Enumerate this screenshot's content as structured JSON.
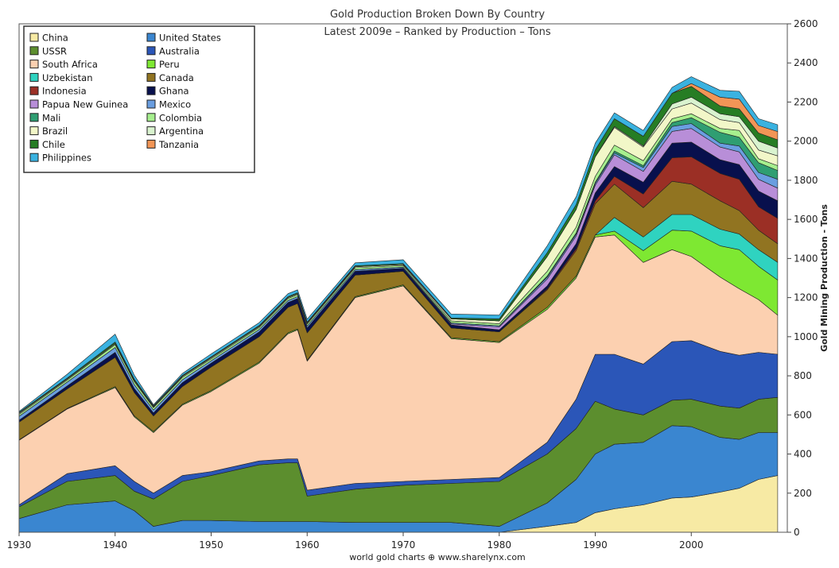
{
  "chart_data": {
    "type": "area",
    "stacked": true,
    "title": "Gold Production Broken Down By Country",
    "subtitle": "Latest 2009e – Ranked by Production – Tons",
    "xlabel": "",
    "ylabel": "Gold Mining Production - Tons",
    "credit": "world gold charts ⊕ www.sharelynx.com",
    "xlim": [
      1930,
      2010
    ],
    "ylim": [
      0,
      2600
    ],
    "x_ticks": [
      1930,
      1940,
      1950,
      1960,
      1970,
      1980,
      1990,
      2000
    ],
    "y_ticks": [
      0,
      200,
      400,
      600,
      800,
      1000,
      1200,
      1400,
      1600,
      1800,
      2000,
      2200,
      2400,
      2600
    ],
    "y_axis_side": "right",
    "grid": false,
    "legend_position": "top-left",
    "x": [
      1930,
      1935,
      1940,
      1942,
      1944,
      1947,
      1950,
      1955,
      1958,
      1959,
      1960,
      1965,
      1970,
      1975,
      1980,
      1985,
      1988,
      1990,
      1992,
      1995,
      1998,
      2000,
      2003,
      2005,
      2007,
      2009
    ],
    "series": [
      {
        "name": "China",
        "color": "#f7eaa4",
        "values": [
          0,
          0,
          0,
          0,
          0,
          0,
          0,
          0,
          0,
          0,
          0,
          0,
          0,
          0,
          0,
          30,
          50,
          100,
          120,
          140,
          175,
          180,
          205,
          225,
          270,
          290
        ]
      },
      {
        "name": "United States",
        "color": "#3a86d0",
        "values": [
          70,
          140,
          160,
          110,
          30,
          60,
          60,
          55,
          55,
          55,
          55,
          50,
          50,
          50,
          30,
          120,
          220,
          300,
          330,
          320,
          370,
          360,
          280,
          250,
          240,
          220
        ]
      },
      {
        "name": "USSR",
        "color": "#5c8e2e",
        "values": [
          60,
          120,
          130,
          100,
          140,
          200,
          230,
          290,
          300,
          300,
          130,
          170,
          190,
          200,
          230,
          250,
          260,
          270,
          180,
          140,
          130,
          140,
          160,
          160,
          170,
          180
        ]
      },
      {
        "name": "Australia",
        "color": "#2b56b8",
        "values": [
          10,
          40,
          50,
          50,
          30,
          30,
          20,
          20,
          20,
          20,
          30,
          30,
          20,
          20,
          20,
          60,
          150,
          240,
          280,
          260,
          300,
          300,
          280,
          270,
          240,
          220
        ]
      },
      {
        "name": "South Africa",
        "color": "#fcd0b0",
        "values": [
          330,
          330,
          400,
          330,
          310,
          360,
          410,
          500,
          640,
          660,
          660,
          950,
          1000,
          720,
          690,
          680,
          620,
          600,
          610,
          520,
          470,
          430,
          380,
          340,
          270,
          200
        ]
      },
      {
        "name": "Peru",
        "color": "#7ee832",
        "values": [
          3,
          3,
          5,
          5,
          5,
          5,
          5,
          5,
          5,
          5,
          5,
          5,
          5,
          5,
          5,
          10,
          10,
          10,
          20,
          60,
          100,
          130,
          160,
          200,
          170,
          180
        ]
      },
      {
        "name": "Uzbekistan",
        "color": "#2fd3c0",
        "values": [
          0,
          0,
          0,
          0,
          0,
          0,
          0,
          0,
          0,
          0,
          0,
          0,
          0,
          0,
          0,
          0,
          0,
          0,
          70,
          70,
          80,
          85,
          85,
          80,
          85,
          90
        ]
      },
      {
        "name": "Canada",
        "color": "#917421",
        "values": [
          90,
          100,
          150,
          120,
          80,
          90,
          120,
          130,
          130,
          130,
          140,
          110,
          70,
          50,
          50,
          90,
          130,
          160,
          170,
          150,
          170,
          155,
          145,
          120,
          100,
          95
        ]
      },
      {
        "name": "Indonesia",
        "color": "#9b2f25",
        "values": [
          0,
          0,
          0,
          0,
          0,
          0,
          0,
          0,
          0,
          0,
          0,
          0,
          0,
          0,
          0,
          5,
          10,
          15,
          40,
          70,
          120,
          140,
          140,
          160,
          120,
          130
        ]
      },
      {
        "name": "Ghana",
        "color": "#08104d",
        "values": [
          10,
          15,
          25,
          20,
          15,
          20,
          20,
          25,
          25,
          25,
          25,
          20,
          15,
          15,
          10,
          15,
          25,
          40,
          50,
          60,
          75,
          75,
          70,
          75,
          80,
          90
        ]
      },
      {
        "name": "Papua New Guinea",
        "color": "#b88ed8",
        "values": [
          0,
          0,
          0,
          0,
          0,
          0,
          0,
          0,
          0,
          0,
          0,
          0,
          0,
          5,
          15,
          35,
          40,
          40,
          60,
          55,
          60,
          70,
          65,
          65,
          60,
          65
        ]
      },
      {
        "name": "Mexico",
        "color": "#6a9ee0",
        "values": [
          20,
          20,
          25,
          20,
          15,
          15,
          12,
          12,
          10,
          10,
          10,
          8,
          6,
          6,
          6,
          10,
          10,
          10,
          10,
          20,
          25,
          25,
          20,
          30,
          35,
          45
        ]
      },
      {
        "name": "Mali",
        "color": "#2f9e72",
        "values": [
          0,
          0,
          0,
          0,
          0,
          0,
          0,
          0,
          0,
          0,
          0,
          0,
          0,
          0,
          0,
          5,
          5,
          5,
          10,
          10,
          20,
          30,
          55,
          45,
          50,
          45
        ]
      },
      {
        "name": "Colombia",
        "color": "#a6ef8e",
        "values": [
          10,
          10,
          15,
          15,
          12,
          12,
          10,
          10,
          10,
          10,
          10,
          10,
          8,
          10,
          10,
          25,
          30,
          30,
          30,
          25,
          20,
          20,
          20,
          35,
          20,
          25
        ]
      },
      {
        "name": "Brazil",
        "color": "#f2f7c8",
        "values": [
          5,
          5,
          5,
          5,
          5,
          5,
          5,
          5,
          5,
          5,
          5,
          5,
          5,
          10,
          15,
          75,
          90,
          100,
          90,
          70,
          50,
          55,
          45,
          40,
          45,
          50
        ]
      },
      {
        "name": "Argentina",
        "color": "#d9f3cf",
        "values": [
          0,
          0,
          0,
          0,
          0,
          0,
          0,
          0,
          0,
          0,
          0,
          0,
          0,
          0,
          0,
          0,
          0,
          0,
          5,
          5,
          25,
          30,
          30,
          30,
          45,
          40
        ]
      },
      {
        "name": "Chile",
        "color": "#267d24",
        "values": [
          5,
          5,
          8,
          8,
          5,
          5,
          5,
          5,
          5,
          5,
          5,
          5,
          5,
          5,
          10,
          20,
          25,
          35,
          40,
          50,
          55,
          55,
          40,
          40,
          42,
          42
        ]
      },
      {
        "name": "Tanzania",
        "color": "#f29556",
        "values": [
          0,
          0,
          0,
          0,
          0,
          0,
          0,
          0,
          0,
          0,
          0,
          0,
          0,
          0,
          0,
          0,
          0,
          0,
          0,
          0,
          0,
          15,
          45,
          50,
          38,
          42
        ]
      },
      {
        "name": "Philippines",
        "color": "#3ab2e0",
        "values": [
          5,
          20,
          40,
          20,
          5,
          10,
          15,
          15,
          15,
          15,
          15,
          15,
          20,
          20,
          20,
          35,
          40,
          35,
          30,
          30,
          30,
          35,
          35,
          40,
          35,
          35
        ]
      }
    ],
    "legend_columns": [
      [
        "China",
        "USSR",
        "South Africa",
        "Uzbekistan",
        "Indonesia",
        "Papua New Guinea",
        "Mali",
        "Brazil",
        "Chile",
        "Philippines"
      ],
      [
        "United States",
        "Australia",
        "Peru",
        "Canada",
        "Ghana",
        "Mexico",
        "Colombia",
        "Argentina",
        "Tanzania"
      ]
    ]
  }
}
